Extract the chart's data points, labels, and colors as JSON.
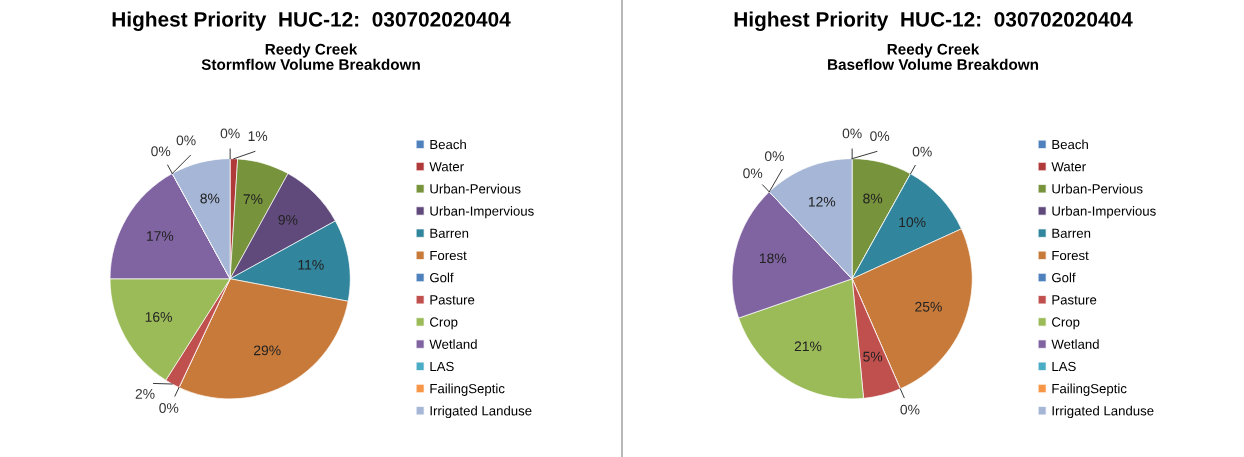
{
  "chart_data": [
    {
      "type": "pie",
      "title": "Highest Priority  HUC-12:  030702020404",
      "subtitle": "Reedy Creek\nStormflow Volume Breakdown",
      "categories": [
        "Beach",
        "Water",
        "Urban-Pervious",
        "Urban-Impervious",
        "Barren",
        "Forest",
        "Golf",
        "Pasture",
        "Crop",
        "Wetland",
        "LAS",
        "FailingSeptic",
        "Irrigated Landuse"
      ],
      "values": [
        0,
        1,
        7,
        9,
        11,
        29,
        0,
        2,
        16,
        17,
        0,
        0,
        8
      ],
      "value_labels": [
        "0%",
        "1%",
        "7%",
        "9%",
        "11%",
        "29%",
        "0%",
        "2%",
        "16%",
        "17%",
        "0%",
        "0%",
        "8%"
      ],
      "colors": [
        "#4f81bd",
        "#b03a3a",
        "#77933c",
        "#604a7b",
        "#31859c",
        "#c87a3a",
        "#4f81bd",
        "#c0504d",
        "#9bbb59",
        "#8064a2",
        "#4bacc6",
        "#f79646",
        "#a5b6d6"
      ],
      "legend": "right"
    },
    {
      "type": "pie",
      "title": "Highest Priority  HUC-12:  030702020404",
      "subtitle": "Reedy Creek\nBaseflow Volume Breakdown",
      "categories": [
        "Beach",
        "Water",
        "Urban-Pervious",
        "Urban-Impervious",
        "Barren",
        "Forest",
        "Golf",
        "Pasture",
        "Crop",
        "Wetland",
        "LAS",
        "FailingSeptic",
        "Irrigated Landuse"
      ],
      "values": [
        0,
        0,
        8,
        0,
        10,
        25,
        0,
        5,
        21,
        18,
        0,
        0,
        12
      ],
      "value_labels": [
        "0%",
        "0%",
        "8%",
        "0%",
        "10%",
        "25%",
        "0%",
        "5%",
        "21%",
        "18%",
        "0%",
        "0%",
        "12%"
      ],
      "colors": [
        "#4f81bd",
        "#b03a3a",
        "#77933c",
        "#604a7b",
        "#31859c",
        "#c87a3a",
        "#4f81bd",
        "#c0504d",
        "#9bbb59",
        "#8064a2",
        "#4bacc6",
        "#f79646",
        "#a5b6d6"
      ],
      "legend": "right"
    }
  ]
}
